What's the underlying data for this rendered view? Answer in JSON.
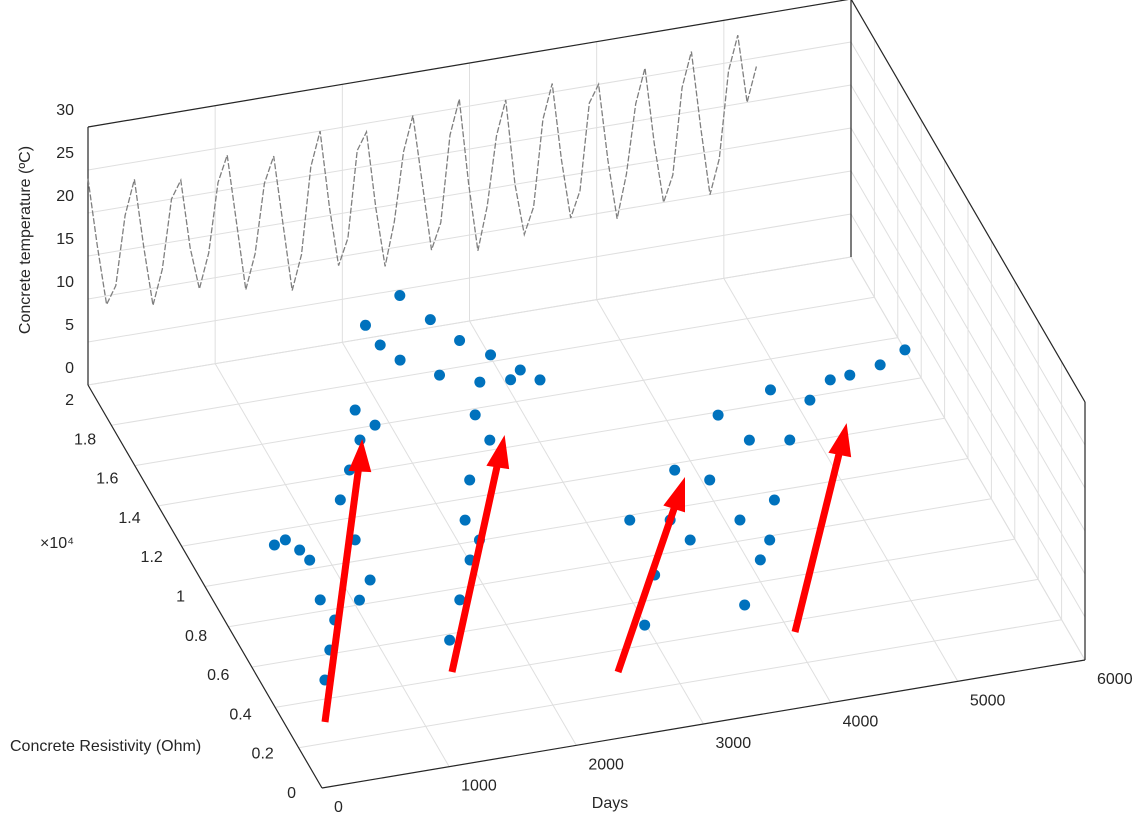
{
  "chart_data": {
    "type": "scatter3d",
    "x_label": "Days",
    "y_label": "Concrete Resistivity (Ohm)",
    "y_multiplier": "×10⁴",
    "z_label": "Concrete temperature (ºC)",
    "xlim": [
      0,
      6000
    ],
    "xticks": [
      0,
      1000,
      2000,
      3000,
      4000,
      5000,
      6000
    ],
    "ylim": [
      0,
      20000
    ],
    "yticks": [
      0,
      {
        "value": 2000,
        "label": "0.2"
      },
      {
        "value": 4000,
        "label": "0.4"
      },
      {
        "value": 6000,
        "label": "0.6"
      },
      {
        "value": 8000,
        "label": "0.8"
      },
      {
        "value": 10000,
        "label": "1"
      },
      {
        "value": 12000,
        "label": "1.2"
      },
      {
        "value": 14000,
        "label": "1.4"
      },
      {
        "value": 16000,
        "label": "1.6"
      },
      {
        "value": 18000,
        "label": "1.8"
      },
      {
        "value": 20000,
        "label": "2"
      }
    ],
    "zlim": [
      0,
      30
    ],
    "zticks": [
      0,
      5,
      10,
      15,
      20,
      25,
      30
    ],
    "grid": true,
    "series": [
      {
        "kind": "line",
        "color": "#7f7f7f",
        "x": [
          0,
          73,
          146,
          219,
          292,
          365,
          438,
          511,
          584,
          657,
          730,
          803,
          876,
          949,
          1022,
          1095,
          1168,
          1241,
          1314,
          1387,
          1460,
          1533,
          1606,
          1679,
          1752,
          1825,
          1898,
          1971,
          2044,
          2117,
          2190,
          2263,
          2336,
          2409,
          2482,
          2555,
          2628,
          2701,
          2774,
          2847,
          2920,
          2993,
          3066,
          3139,
          3212,
          3285,
          3358,
          3431,
          3504,
          3577,
          3650,
          3723,
          3796,
          3869,
          3942,
          4015,
          4088,
          4161,
          4234,
          4307,
          4380,
          4453,
          4526,
          4599,
          4672,
          4745,
          4818,
          4891,
          4964,
          5037,
          5110,
          5183,
          5256
        ],
        "values": [
          24,
          16,
          9,
          11,
          19,
          23,
          15,
          8,
          12,
          20,
          22,
          14,
          9,
          13,
          21,
          24,
          16,
          8,
          12,
          20,
          23,
          15,
          7,
          11,
          21,
          25,
          16,
          9,
          12,
          22,
          24,
          15,
          8,
          13,
          21,
          25,
          17,
          9,
          12,
          22,
          26,
          16,
          8,
          13,
          21,
          25,
          15,
          9,
          12,
          22,
          26,
          17,
          10,
          13,
          23,
          25,
          16,
          9,
          14,
          22,
          26,
          17,
          10,
          13,
          23,
          27,
          18,
          10,
          14,
          24,
          28,
          20,
          24
        ]
      },
      {
        "kind": "scatter",
        "color": "#0072bd",
        "x": [
          470,
          790,
          1270,
          1050,
          770,
          830,
          670,
          860,
          1330,
          1520,
          1720,
          1810,
          1890,
          630,
          1210,
          770,
          1530,
          1770,
          2010,
          2140,
          2340,
          2650,
          2650,
          2160,
          2090,
          2340,
          2560,
          2820,
          3050,
          3260,
          2360,
          2600,
          2830,
          3010,
          3160,
          2260,
          2990,
          3270,
          3610,
          3850,
          3670,
          3320,
          4060,
          4390,
          3790,
          4090,
          4110,
          4440,
          4800,
          4510,
          5110,
          4870,
          5500,
          5760,
          6000,
          5340,
          4240
        ],
        "y": [
          4860,
          7500,
          10970,
          8210,
          11500,
          10930,
          11350,
          10400,
          12890,
          14170,
          15450,
          16840,
          16010,
          6180,
          9040,
          8520,
          5720,
          7460,
          9190,
          11030,
          12810,
          14460,
          15710,
          10020,
          19000,
          18760,
          17780,
          17160,
          17030,
          16800,
          19000,
          19000,
          19000,
          18310,
          17400,
          19590,
          4920,
          7110,
          9480,
          11700,
          8420,
          9780,
          10990,
          13860,
          5070,
          6990,
          8950,
          9590,
          12190,
          12490,
          13840,
          14600,
          14670,
          14900,
          15390,
          14600,
          7820
        ],
        "z": [
          0,
          0,
          0,
          0,
          0,
          0,
          0,
          0,
          0,
          0,
          0,
          0,
          0,
          0,
          0,
          0,
          0,
          0,
          0,
          0,
          0,
          0,
          0,
          0,
          4.1,
          0,
          0,
          0,
          0,
          0,
          6.9,
          3.5,
          0.5,
          0,
          0,
          0,
          0,
          0,
          0,
          0,
          0,
          0,
          0,
          0,
          0,
          0,
          0,
          0,
          0,
          0,
          0,
          0,
          0,
          0,
          0,
          0,
          0
        ]
      }
    ]
  }
}
